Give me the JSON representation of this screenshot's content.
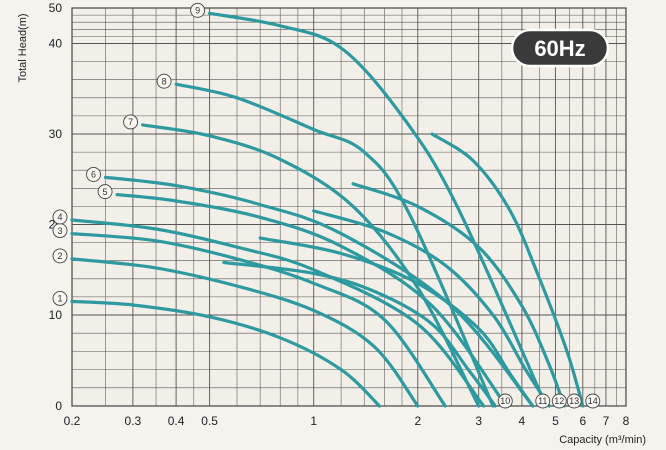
{
  "chart_data": {
    "type": "line",
    "xlabel": "Capacity (m³/min)",
    "ylabel": "Total Head(m)",
    "x_scale": "log",
    "y_scale": "piecewise-linear",
    "xlim": [
      0.2,
      8
    ],
    "ylim": [
      0,
      50
    ],
    "x_ticks": [
      0.2,
      0.3,
      0.4,
      0.5,
      1,
      2,
      3,
      4,
      5,
      6,
      7,
      8
    ],
    "x_tick_labels": [
      "0.2",
      "0.3",
      "0.4",
      "0.5",
      "1",
      "2",
      "3",
      "4",
      "5",
      "6",
      "7",
      "8"
    ],
    "y_ticks": [
      0,
      10,
      20,
      30,
      40,
      50
    ],
    "y_tick_labels": [
      "0",
      "10",
      "20",
      "30",
      "40",
      "50"
    ],
    "grid": true,
    "badge": "60Hz",
    "line_color": "#2e9aa0",
    "series": [
      {
        "name": "1",
        "points": [
          [
            0.2,
            11.5
          ],
          [
            0.3,
            11.1
          ],
          [
            0.5,
            9.8
          ],
          [
            0.8,
            7.5
          ],
          [
            1.2,
            4.0
          ],
          [
            1.55,
            0
          ]
        ]
      },
      {
        "name": "2",
        "points": [
          [
            0.2,
            16.2
          ],
          [
            0.35,
            15.2
          ],
          [
            0.6,
            13.2
          ],
          [
            1.0,
            10.5
          ],
          [
            1.5,
            6.5
          ],
          [
            2.0,
            0
          ]
        ]
      },
      {
        "name": "3",
        "points": [
          [
            0.2,
            19.0
          ],
          [
            0.35,
            18.2
          ],
          [
            0.6,
            16.2
          ],
          [
            1.0,
            13.5
          ],
          [
            1.6,
            9.5
          ],
          [
            2.4,
            0
          ]
        ]
      },
      {
        "name": "4",
        "points": [
          [
            0.2,
            20.5
          ],
          [
            0.35,
            19.5
          ],
          [
            0.6,
            17.5
          ],
          [
            1.0,
            15.0
          ],
          [
            2.0,
            9.0
          ],
          [
            3.1,
            0
          ]
        ]
      },
      {
        "name": "5",
        "points": [
          [
            0.27,
            23.3
          ],
          [
            0.4,
            22.6
          ],
          [
            0.7,
            20.8
          ],
          [
            1.2,
            17.6
          ],
          [
            2.2,
            11.0
          ],
          [
            3.6,
            0
          ]
        ]
      },
      {
        "name": "6",
        "points": [
          [
            0.25,
            25.2
          ],
          [
            0.4,
            24.3
          ],
          [
            0.7,
            22.2
          ],
          [
            1.2,
            19.0
          ],
          [
            2.5,
            11.0
          ],
          [
            4.3,
            0
          ]
        ]
      },
      {
        "name": "7",
        "points": [
          [
            0.32,
            31.0
          ],
          [
            0.5,
            29.8
          ],
          [
            0.8,
            27.2
          ],
          [
            1.3,
            22.0
          ],
          [
            2.0,
            13.0
          ],
          [
            3.0,
            0
          ]
        ]
      },
      {
        "name": "8",
        "points": [
          [
            0.4,
            35.5
          ],
          [
            0.6,
            34.0
          ],
          [
            1.0,
            30.5
          ],
          [
            1.4,
            28.0
          ],
          [
            1.9,
            21.0
          ],
          [
            3.3,
            0
          ]
        ]
      },
      {
        "name": "9",
        "points": [
          [
            0.5,
            48.5
          ],
          [
            0.8,
            45.0
          ],
          [
            1.2,
            39.5
          ],
          [
            1.8,
            32.0
          ],
          [
            2.6,
            22.0
          ],
          [
            4.7,
            0
          ]
        ]
      },
      {
        "name": "10",
        "points": [
          [
            0.55,
            15.8
          ],
          [
            1.0,
            14.6
          ],
          [
            1.5,
            12.6
          ],
          [
            2.2,
            9.0
          ],
          [
            2.8,
            4.0
          ],
          [
            3.35,
            0
          ]
        ]
      },
      {
        "name": "11",
        "points": [
          [
            0.7,
            18.5
          ],
          [
            1.2,
            16.8
          ],
          [
            2.0,
            13.5
          ],
          [
            3.0,
            8.5
          ],
          [
            3.7,
            3.5
          ],
          [
            4.3,
            0
          ]
        ]
      },
      {
        "name": "12",
        "points": [
          [
            1.0,
            21.5
          ],
          [
            1.6,
            19.2
          ],
          [
            2.4,
            15.5
          ],
          [
            3.3,
            10.0
          ],
          [
            4.1,
            4.0
          ],
          [
            4.8,
            0
          ]
        ]
      },
      {
        "name": "13",
        "points": [
          [
            1.3,
            24.5
          ],
          [
            2.0,
            22.0
          ],
          [
            3.0,
            17.5
          ],
          [
            4.0,
            11.0
          ],
          [
            4.8,
            4.5
          ],
          [
            5.3,
            0
          ]
        ]
      },
      {
        "name": "14",
        "points": [
          [
            2.2,
            30.0
          ],
          [
            2.9,
            27.0
          ],
          [
            3.7,
            21.5
          ],
          [
            4.5,
            14.0
          ],
          [
            5.4,
            6.0
          ],
          [
            6.0,
            0
          ]
        ]
      }
    ]
  }
}
